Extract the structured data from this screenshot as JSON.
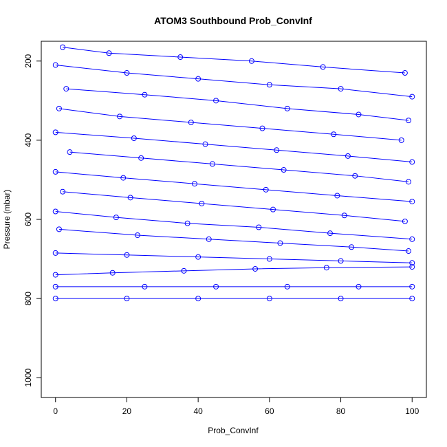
{
  "chart_data": {
    "type": "scatter",
    "title": "ATOM3 Southbound Prob_ConvInf",
    "xlabel": "Prob_ConvInf",
    "ylabel": "Pressure (mbar)",
    "xlim": [
      -4,
      104
    ],
    "ylim": [
      1050,
      150
    ],
    "y_inverted": true,
    "x_ticks": [
      0,
      20,
      40,
      60,
      80,
      100
    ],
    "y_ticks": [
      200,
      400,
      600,
      800,
      1000
    ],
    "grid": false,
    "legend": "none",
    "marker": "open-circle",
    "connected": true,
    "series_color": "#0000ff",
    "series": [
      {
        "x": [
          2,
          15,
          35,
          55,
          75,
          98
        ],
        "y": [
          165,
          180,
          190,
          200,
          215,
          230
        ]
      },
      {
        "x": [
          0,
          20,
          40,
          60,
          80,
          100
        ],
        "y": [
          210,
          230,
          245,
          260,
          270,
          290
        ]
      },
      {
        "x": [
          3,
          25,
          45,
          65,
          85,
          99
        ],
        "y": [
          270,
          285,
          300,
          320,
          335,
          350
        ]
      },
      {
        "x": [
          1,
          18,
          38,
          58,
          78,
          97
        ],
        "y": [
          320,
          340,
          355,
          370,
          385,
          400
        ]
      },
      {
        "x": [
          0,
          22,
          42,
          62,
          82,
          100
        ],
        "y": [
          380,
          395,
          410,
          425,
          440,
          455
        ]
      },
      {
        "x": [
          4,
          24,
          44,
          64,
          84,
          99
        ],
        "y": [
          430,
          445,
          460,
          475,
          490,
          505
        ]
      },
      {
        "x": [
          0,
          19,
          39,
          59,
          79,
          100
        ],
        "y": [
          480,
          495,
          510,
          525,
          540,
          555
        ]
      },
      {
        "x": [
          2,
          21,
          41,
          61,
          81,
          98
        ],
        "y": [
          530,
          545,
          560,
          575,
          590,
          605
        ]
      },
      {
        "x": [
          0,
          17,
          37,
          57,
          77,
          100
        ],
        "y": [
          580,
          595,
          610,
          620,
          635,
          650
        ]
      },
      {
        "x": [
          1,
          23,
          43,
          63,
          83,
          99
        ],
        "y": [
          625,
          640,
          650,
          660,
          670,
          680
        ]
      },
      {
        "x": [
          0,
          20,
          40,
          60,
          80,
          100
        ],
        "y": [
          685,
          690,
          695,
          700,
          705,
          710
        ]
      },
      {
        "x": [
          0,
          16,
          36,
          56,
          76,
          100
        ],
        "y": [
          740,
          735,
          730,
          725,
          722,
          720
        ]
      },
      {
        "x": [
          0,
          25,
          45,
          65,
          85,
          100
        ],
        "y": [
          770,
          770,
          770,
          770,
          770,
          770
        ]
      },
      {
        "x": [
          0,
          20,
          40,
          60,
          80,
          100
        ],
        "y": [
          800,
          800,
          800,
          800,
          800,
          800
        ]
      }
    ]
  }
}
